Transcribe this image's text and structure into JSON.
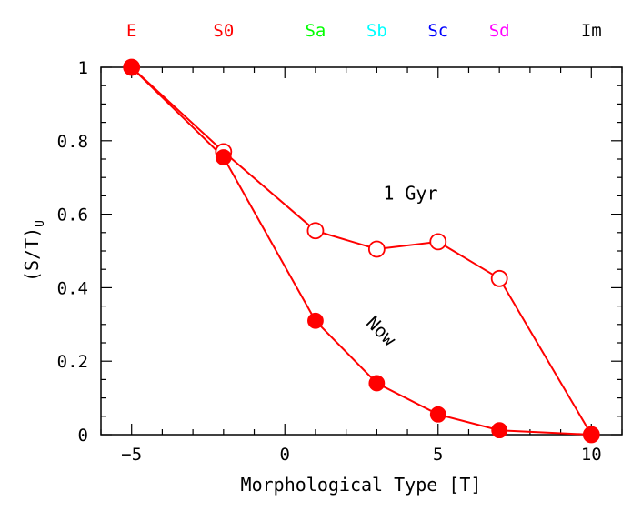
{
  "chart_data": {
    "type": "line",
    "xlabel": "Morphological Type [T]",
    "ylabel": {
      "main": "(S/T)",
      "subscript": "U"
    },
    "xlim": [
      -6,
      11
    ],
    "ylim": [
      0,
      1
    ],
    "x_ticks": [
      -5,
      0,
      5,
      10
    ],
    "x_tick_labels": [
      "−5",
      "0",
      "5",
      "10"
    ],
    "y_ticks": [
      0,
      0.2,
      0.4,
      0.6,
      0.8,
      1
    ],
    "y_tick_labels": [
      "0",
      "0.2",
      "0.4",
      "0.6",
      "0.8",
      "1"
    ],
    "grid": false,
    "line_color": "#ff0000",
    "top_type_labels": [
      {
        "label": "E",
        "x": -5,
        "color": "#ff0000"
      },
      {
        "label": "S0",
        "x": -2,
        "color": "#ff0000"
      },
      {
        "label": "Sa",
        "x": 1,
        "color": "#00ff00"
      },
      {
        "label": "Sb",
        "x": 3,
        "color": "#00ffff"
      },
      {
        "label": "Sc",
        "x": 5,
        "color": "#0000ff"
      },
      {
        "label": "Sd",
        "x": 7,
        "color": "#ff00ff"
      },
      {
        "label": "Im",
        "x": 10,
        "color": "#000000"
      }
    ],
    "series": [
      {
        "marker": "open-circle",
        "x": [
          -5,
          -2,
          1,
          3,
          5,
          7,
          10
        ],
        "y": [
          1.0,
          0.77,
          0.555,
          0.505,
          0.525,
          0.425,
          0.0
        ]
      },
      {
        "marker": "filled-circle",
        "x": [
          -5,
          -2,
          1,
          3,
          5,
          7,
          10
        ],
        "y": [
          1.0,
          0.755,
          0.31,
          0.14,
          0.055,
          0.012,
          0.0
        ]
      }
    ],
    "annotations": [
      {
        "text": "1 Gyr",
        "x": 4.1,
        "y": 0.64,
        "rotation": 0
      },
      {
        "text": "Now",
        "x": 3.0,
        "y": 0.27,
        "rotation": 45
      }
    ]
  }
}
